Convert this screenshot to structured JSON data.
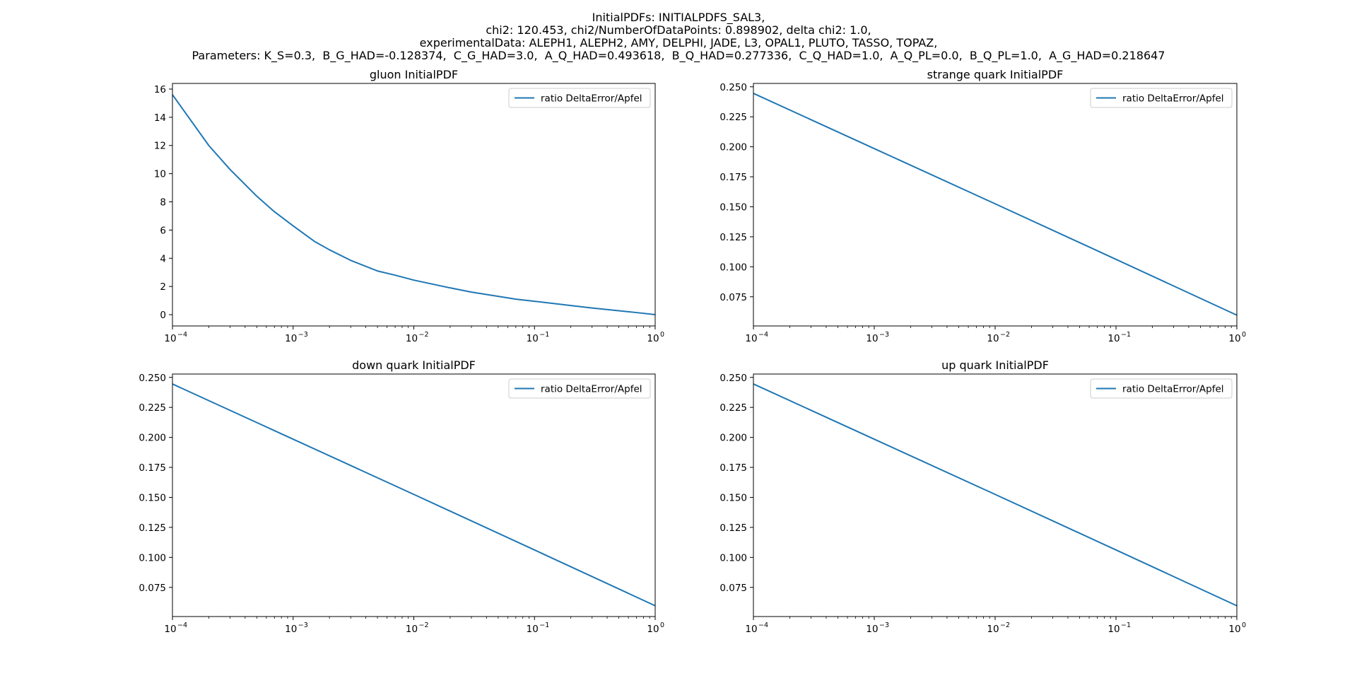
{
  "figure": {
    "suptitle_lines": [
      "InitialPDFs: INITIALPDFS_SAL3,",
      "chi2: 120.453, chi2/NumberOfDataPoints: 0.898902, delta chi2: 1.0,",
      "experimentalData: ALEPH1, ALEPH2, AMY, DELPHI, JADE, L3, OPAL1, PLUTO, TASSO, TOPAZ,",
      "Parameters: K_S=0.3,  B_G_HAD=-0.128374,  C_G_HAD=3.0,  A_Q_HAD=0.493618,  B_Q_HAD=0.277336,  C_Q_HAD=1.0,  A_Q_PL=0.0,  B_Q_PL=1.0,  A_G_HAD=0.218647"
    ]
  },
  "chart_data": [
    {
      "type": "line",
      "title": "gluon InitialPDF",
      "xscale": "log",
      "xlim": [
        0.0001,
        1
      ],
      "ylim": [
        -0.8,
        16.4
      ],
      "yticks": [
        0,
        2,
        4,
        6,
        8,
        10,
        12,
        14,
        16
      ],
      "ytick_labels": [
        "0",
        "2",
        "4",
        "6",
        "8",
        "10",
        "12",
        "14",
        "16"
      ],
      "xtick_labels": [
        "10",
        "10",
        "10",
        "10",
        "10"
      ],
      "xtick_exponents": [
        "−4",
        "−3",
        "−2",
        "−1",
        "0"
      ],
      "legend_position": "upper right",
      "series": [
        {
          "name": "ratio DeltaError/Apfel",
          "color": "#1f77b4",
          "x": [
            0.0001,
            0.0002,
            0.0003,
            0.0005,
            0.0007,
            0.001,
            0.0015,
            0.002,
            0.003,
            0.005,
            0.007,
            0.01,
            0.02,
            0.03,
            0.05,
            0.07,
            0.1,
            0.2,
            0.3,
            0.5,
            0.7,
            1.0
          ],
          "values": [
            15.6,
            12.0,
            10.3,
            8.4,
            7.3,
            6.3,
            5.2,
            4.6,
            3.85,
            3.1,
            2.8,
            2.45,
            1.9,
            1.6,
            1.3,
            1.1,
            0.95,
            0.65,
            0.47,
            0.28,
            0.15,
            0.0
          ]
        }
      ]
    },
    {
      "type": "line",
      "title": "strange quark InitialPDF",
      "xscale": "log",
      "xlim": [
        0.0001,
        1
      ],
      "ylim": [
        0.0507,
        0.2528
      ],
      "yticks": [
        0.075,
        0.1,
        0.125,
        0.15,
        0.175,
        0.2,
        0.225,
        0.25
      ],
      "ytick_labels": [
        "0.075",
        "0.100",
        "0.125",
        "0.150",
        "0.175",
        "0.200",
        "0.225",
        "0.250"
      ],
      "xtick_labels": [
        "10",
        "10",
        "10",
        "10",
        "10"
      ],
      "xtick_exponents": [
        "−4",
        "−3",
        "−2",
        "−1",
        "0"
      ],
      "legend_position": "upper right",
      "series": [
        {
          "name": "ratio DeltaError/Apfel",
          "color": "#1f77b4",
          "x": [
            0.0001,
            0.001,
            0.01,
            0.1,
            1.0
          ],
          "values": [
            0.2445,
            0.1985,
            0.1525,
            0.1062,
            0.0597
          ]
        }
      ]
    },
    {
      "type": "line",
      "title": "down quark InitialPDF",
      "xscale": "log",
      "xlim": [
        0.0001,
        1
      ],
      "ylim": [
        0.0507,
        0.2528
      ],
      "yticks": [
        0.075,
        0.1,
        0.125,
        0.15,
        0.175,
        0.2,
        0.225,
        0.25
      ],
      "ytick_labels": [
        "0.075",
        "0.100",
        "0.125",
        "0.150",
        "0.175",
        "0.200",
        "0.225",
        "0.250"
      ],
      "xtick_labels": [
        "10",
        "10",
        "10",
        "10",
        "10"
      ],
      "xtick_exponents": [
        "−4",
        "−3",
        "−2",
        "−1",
        "0"
      ],
      "legend_position": "upper right",
      "series": [
        {
          "name": "ratio DeltaError/Apfel",
          "color": "#1f77b4",
          "x": [
            0.0001,
            0.001,
            0.01,
            0.1,
            1.0
          ],
          "values": [
            0.2445,
            0.1985,
            0.1525,
            0.1062,
            0.0597
          ]
        }
      ]
    },
    {
      "type": "line",
      "title": "up quark InitialPDF",
      "xscale": "log",
      "xlim": [
        0.0001,
        1
      ],
      "ylim": [
        0.0507,
        0.2528
      ],
      "yticks": [
        0.075,
        0.1,
        0.125,
        0.15,
        0.175,
        0.2,
        0.225,
        0.25
      ],
      "ytick_labels": [
        "0.075",
        "0.100",
        "0.125",
        "0.150",
        "0.175",
        "0.200",
        "0.225",
        "0.250"
      ],
      "xtick_labels": [
        "10",
        "10",
        "10",
        "10",
        "10"
      ],
      "xtick_exponents": [
        "−4",
        "−3",
        "−2",
        "−1",
        "0"
      ],
      "legend_position": "upper right",
      "series": [
        {
          "name": "ratio DeltaError/Apfel",
          "color": "#1f77b4",
          "x": [
            0.0001,
            0.001,
            0.01,
            0.1,
            1.0
          ],
          "values": [
            0.2445,
            0.1985,
            0.1525,
            0.1062,
            0.0597
          ]
        }
      ]
    }
  ]
}
